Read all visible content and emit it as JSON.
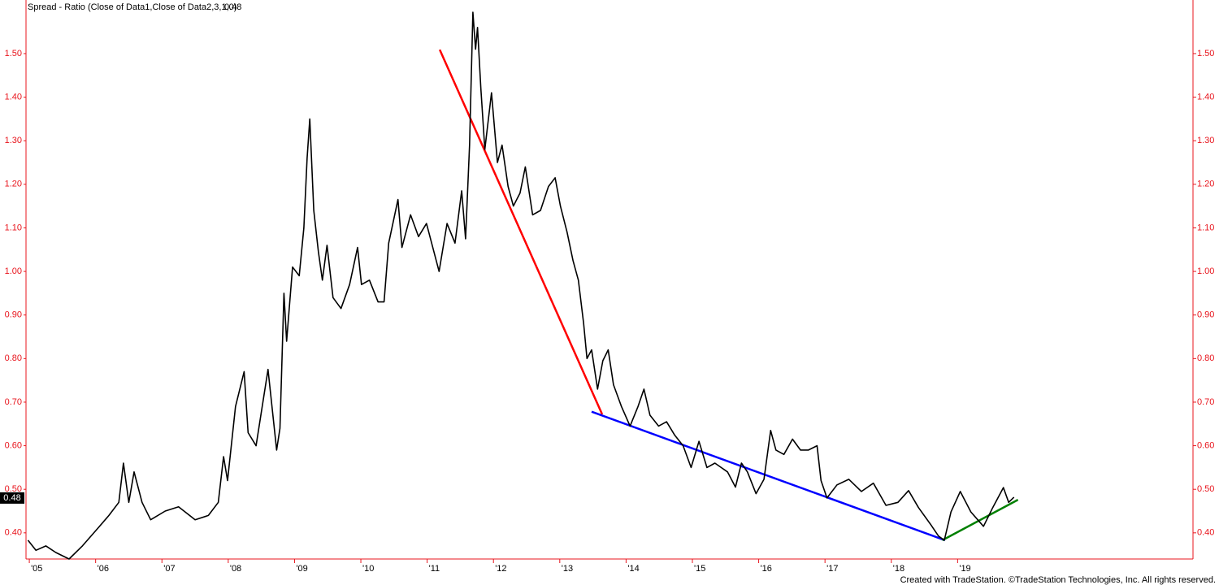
{
  "chart_data": {
    "type": "line",
    "title": "Spread - Ratio (Close of Data1,Close of Data2,3,1,0)",
    "last_value": 0.48,
    "footer": "Created with TradeStation. ©TradeStation Technologies, Inc. All rights reserved.",
    "axis_color": "#e8141c",
    "grid": false,
    "xlim": [
      2004.95,
      2022.55
    ],
    "xticks": [
      {
        "value": 2005,
        "label": "'05"
      },
      {
        "value": 2006,
        "label": "'06"
      },
      {
        "value": 2007,
        "label": "'07"
      },
      {
        "value": 2008,
        "label": "'08"
      },
      {
        "value": 2009,
        "label": "'09"
      },
      {
        "value": 2010,
        "label": "'10"
      },
      {
        "value": 2011,
        "label": "'11"
      },
      {
        "value": 2012,
        "label": "'12"
      },
      {
        "value": 2013,
        "label": "'13"
      },
      {
        "value": 2014,
        "label": "'14"
      },
      {
        "value": 2015,
        "label": "'15"
      },
      {
        "value": 2016,
        "label": "'16"
      },
      {
        "value": 2017,
        "label": "'17"
      },
      {
        "value": 2018,
        "label": "'18"
      },
      {
        "value": 2019,
        "label": "'19"
      }
    ],
    "ylim": [
      0.34,
      1.623
    ],
    "yticks": [
      {
        "value": 0.4,
        "label": "0.40"
      },
      {
        "value": 0.5,
        "label": "0.50"
      },
      {
        "value": 0.6,
        "label": "0.60"
      },
      {
        "value": 0.7,
        "label": "0.70"
      },
      {
        "value": 0.8,
        "label": "0.80"
      },
      {
        "value": 0.9,
        "label": "0.90"
      },
      {
        "value": 1.0,
        "label": "1.00"
      },
      {
        "value": 1.1,
        "label": "1.10"
      },
      {
        "value": 1.2,
        "label": "1.20"
      },
      {
        "value": 1.3,
        "label": "1.30"
      },
      {
        "value": 1.4,
        "label": "1.40"
      },
      {
        "value": 1.5,
        "label": "1.50"
      }
    ],
    "series": [
      {
        "color": "#000000",
        "x": [
          2004.98,
          2005.1,
          2005.25,
          2005.4,
          2005.6,
          2005.8,
          2006.03,
          2006.2,
          2006.35,
          2006.42,
          2006.5,
          2006.58,
          2006.7,
          2006.83,
          2007.05,
          2007.25,
          2007.5,
          2007.7,
          2007.85,
          2007.93,
          2007.99,
          2008.11,
          2008.24,
          2008.3,
          2008.42,
          2008.6,
          2008.73,
          2008.78,
          2008.84,
          2008.88,
          2008.97,
          2009.07,
          2009.14,
          2009.19,
          2009.23,
          2009.29,
          2009.36,
          2009.42,
          2009.49,
          2009.58,
          2009.7,
          2009.83,
          2009.95,
          2010.01,
          2010.13,
          2010.26,
          2010.35,
          2010.42,
          2010.56,
          2010.62,
          2010.75,
          2010.87,
          2010.99,
          2011.18,
          2011.3,
          2011.42,
          2011.52,
          2011.58,
          2011.64,
          2011.69,
          2011.73,
          2011.76,
          2011.81,
          2011.87,
          2011.97,
          2012.06,
          2012.13,
          2012.22,
          2012.3,
          2012.4,
          2012.48,
          2012.59,
          2012.71,
          2012.83,
          2012.93,
          2013.01,
          2013.11,
          2013.2,
          2013.28,
          2013.36,
          2013.41,
          2013.48,
          2013.57,
          2013.65,
          2013.73,
          2013.81,
          2013.93,
          2014.06,
          2014.18,
          2014.27,
          2014.36,
          2014.49,
          2014.61,
          2014.73,
          2014.86,
          2014.98,
          2015.1,
          2015.22,
          2015.34,
          2015.53,
          2015.65,
          2015.74,
          2015.83,
          2015.96,
          2016.08,
          2016.18,
          2016.26,
          2016.38,
          2016.51,
          2016.63,
          2016.75,
          2016.88,
          2016.94,
          2017.03,
          2017.18,
          2017.36,
          2017.55,
          2017.73,
          2017.92,
          2018.1,
          2018.26,
          2018.41,
          2018.59,
          2018.71,
          2018.8,
          2018.9,
          2019.04,
          2019.2,
          2019.39,
          2019.53,
          2019.69,
          2019.77,
          2019.85
        ],
        "values": [
          0.383,
          0.36,
          0.37,
          0.355,
          0.34,
          0.37,
          0.41,
          0.44,
          0.47,
          0.56,
          0.47,
          0.54,
          0.47,
          0.43,
          0.45,
          0.46,
          0.43,
          0.44,
          0.47,
          0.575,
          0.52,
          0.69,
          0.77,
          0.63,
          0.6,
          0.775,
          0.59,
          0.64,
          0.95,
          0.84,
          1.01,
          0.99,
          1.1,
          1.26,
          1.35,
          1.14,
          1.045,
          0.98,
          1.06,
          0.94,
          0.915,
          0.97,
          1.055,
          0.97,
          0.98,
          0.93,
          0.93,
          1.065,
          1.165,
          1.055,
          1.13,
          1.08,
          1.11,
          1.0,
          1.11,
          1.065,
          1.185,
          1.075,
          1.29,
          1.595,
          1.51,
          1.56,
          1.42,
          1.28,
          1.41,
          1.25,
          1.29,
          1.195,
          1.15,
          1.18,
          1.24,
          1.13,
          1.14,
          1.195,
          1.215,
          1.15,
          1.09,
          1.025,
          0.98,
          0.88,
          0.8,
          0.82,
          0.73,
          0.795,
          0.82,
          0.74,
          0.69,
          0.645,
          0.69,
          0.73,
          0.67,
          0.645,
          0.655,
          0.625,
          0.6,
          0.55,
          0.61,
          0.55,
          0.56,
          0.54,
          0.505,
          0.56,
          0.54,
          0.49,
          0.523,
          0.635,
          0.59,
          0.58,
          0.615,
          0.59,
          0.59,
          0.6,
          0.52,
          0.48,
          0.51,
          0.523,
          0.495,
          0.514,
          0.463,
          0.47,
          0.497,
          0.458,
          0.42,
          0.393,
          0.383,
          0.448,
          0.495,
          0.448,
          0.415,
          0.458,
          0.504,
          0.47,
          0.482
        ]
      }
    ],
    "trendlines": [
      {
        "color": "#ff0000",
        "x": [
          2011.19,
          2013.64
        ],
        "values": [
          1.509,
          0.672
        ]
      },
      {
        "color": "#0000ff",
        "x": [
          2013.48,
          2018.81
        ],
        "values": [
          0.678,
          0.383
        ]
      },
      {
        "color": "#008000",
        "x": [
          2018.77,
          2019.91
        ],
        "values": [
          0.383,
          0.476
        ]
      }
    ]
  }
}
